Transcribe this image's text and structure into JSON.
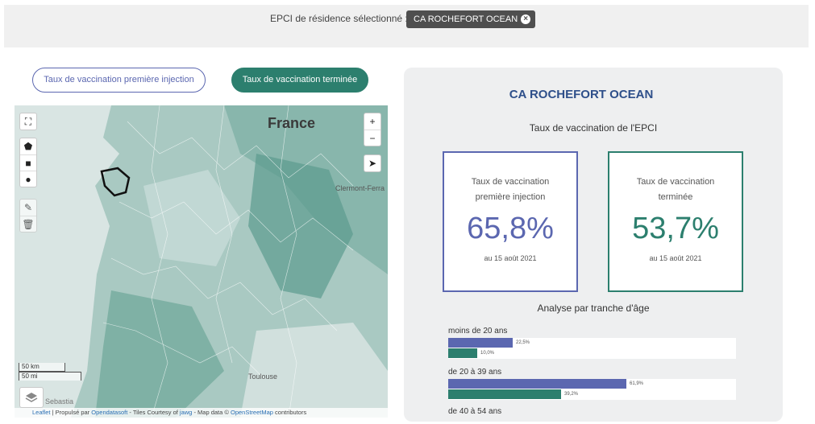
{
  "filter": {
    "label": "EPCI de résidence sélectionné :",
    "chip": "CA ROCHEFORT OCEAN"
  },
  "tabs": {
    "first": "Taux de vaccination première injection",
    "done": "Taux de vaccination terminée"
  },
  "map": {
    "country_label": "France",
    "cities": {
      "clermont": "Clermont-Ferra",
      "toulouse": "Toulouse",
      "sebastian": "Sebastia"
    },
    "scale": {
      "km": "50 km",
      "mi": "50 mi"
    },
    "attribution": {
      "leaflet": "Leaflet",
      "sep1": " | Propulsé par ",
      "ods": "Opendatasoft",
      "tiles": " - Tiles Courtesy of ",
      "jawg": "jawg",
      "mapdata": " - Map data © ",
      "osm": "OpenStreetMap",
      "contrib": " contributors"
    },
    "icons": {
      "fullscreen": "fullscreen-icon",
      "polygon": "polygon-icon",
      "rectangle": "rectangle-icon",
      "circle": "circle-icon",
      "edit": "edit-icon",
      "delete": "trash-icon",
      "zoom_in": "plus-icon",
      "zoom_out": "minus-icon",
      "locate": "locate-arrow-icon",
      "layers": "layers-icon"
    }
  },
  "panel": {
    "title": "CA ROCHEFORT OCEAN",
    "subtitle": "Taux de vaccination de l'EPCI",
    "kpi_first": {
      "label": "Taux de vaccination première injection",
      "value": "65,8%",
      "date": "au 15 août 2021"
    },
    "kpi_done": {
      "label": "Taux de vaccination terminée",
      "value": "53,7%",
      "date": "au 15 août 2021"
    },
    "age_title": "Analyse par tranche d'âge",
    "ages": [
      {
        "name": "moins de 20 ans",
        "first": 22.5,
        "first_label": "22,5%",
        "done": 10.0,
        "done_label": "10,0%"
      },
      {
        "name": "de 20 à 39 ans",
        "first": 61.9,
        "first_label": "61,9%",
        "done": 39.2,
        "done_label": "39,2%"
      },
      {
        "name": "de 40 à 54 ans"
      }
    ]
  },
  "colors": {
    "first": "#5b67b0",
    "done": "#2c7f6e",
    "chip": "#4f4f4f"
  }
}
